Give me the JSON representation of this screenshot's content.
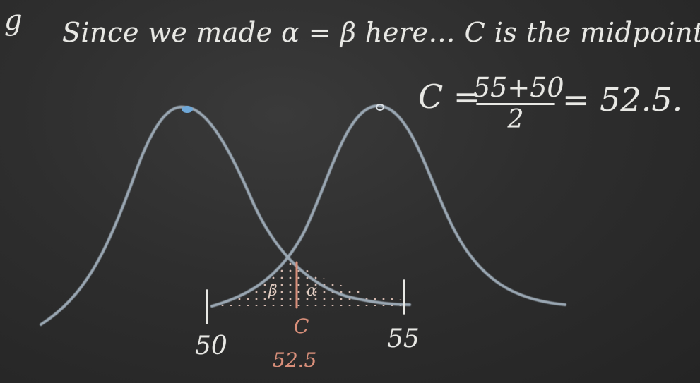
{
  "board": {
    "margin_mark": "g",
    "heading": "Since we made α = β here… C is the midpoint"
  },
  "equation": {
    "lhs": "C =",
    "numerator": "55+50",
    "denominator": "2",
    "rhs": "= 52.5."
  },
  "axis": {
    "tick_left": "50",
    "tick_right": "55",
    "c_letter": "C",
    "c_value": "52.5"
  },
  "regions": {
    "beta": "β",
    "alpha": "α"
  },
  "colors": {
    "chalk": "#e8e8e4",
    "curve": "#9aa7b3",
    "pink_chalk": "#d98f7a",
    "peak_dot": "#6fa8d8"
  }
}
